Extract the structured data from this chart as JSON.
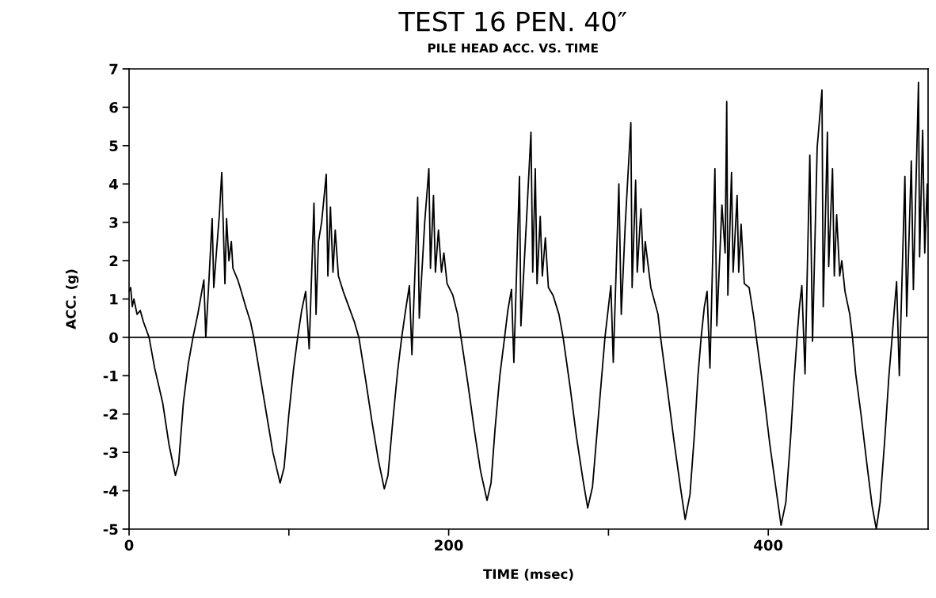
{
  "chart_data": {
    "type": "line",
    "title": "TEST 16 PEN. 40″",
    "subtitle": "PILE HEAD ACC. VS. TIME",
    "xlabel": "TIME (msec)",
    "ylabel": "ACC. (g)",
    "xlim": [
      0,
      500
    ],
    "xticks": [
      0,
      {
        "value": 100,
        "label": null
      },
      200,
      {
        "value": 300,
        "label": null
      },
      400
    ],
    "ylim": [
      -5,
      7
    ],
    "yticks": [
      -5,
      -4,
      -3,
      -2,
      -1,
      0,
      1,
      2,
      3,
      4,
      5,
      6,
      7
    ],
    "grid": false,
    "marker": "none",
    "line_style": "solid",
    "ref_lines": [
      {
        "axis": "y",
        "value": 0,
        "color": "#000000"
      }
    ],
    "series": [
      {
        "color": "#000000",
        "x": [
          0,
          1,
          2,
          3,
          5,
          7,
          9,
          12.5,
          16,
          21,
          25,
          29,
          31,
          34,
          37,
          40,
          43,
          46.8,
          48,
          50,
          52,
          53,
          55,
          56.5,
          58,
          60,
          61,
          62.5,
          64,
          65,
          68,
          69.5,
          73,
          76,
          78,
          82,
          86,
          90,
          94.5,
          97,
          100,
          103,
          105.5,
          108,
          110.5,
          112.7,
          115.7,
          117,
          118.5,
          120.5,
          123.4,
          124.4,
          126,
          127.6,
          129,
          131,
          134,
          137.5,
          141,
          143.8,
          148,
          152,
          156,
          159.7,
          162,
          165,
          168,
          170.6,
          173,
          175.4,
          177,
          180.6,
          181.6,
          185,
          187.6,
          188.6,
          190.5,
          191.7,
          193.6,
          195.5,
          197,
          199,
          202.6,
          205.6,
          207.7,
          212,
          216,
          220,
          224,
          226.5,
          229,
          232,
          235,
          237,
          239.3,
          240.8,
          244.3,
          245.2,
          249,
          251.5,
          252.6,
          254.2,
          255.3,
          257.3,
          258.6,
          260.5,
          262.4,
          265.3,
          269,
          271.6,
          276,
          280,
          284,
          287,
          290,
          293,
          296,
          297.8,
          300,
          301.5,
          303,
          306.5,
          308,
          310.5,
          314,
          314.8,
          317,
          318,
          320.3,
          322,
          323,
          326.5,
          331,
          332.6,
          337,
          341,
          345,
          348,
          351,
          354,
          356,
          358,
          360,
          361.7,
          363.5,
          366.6,
          367.8,
          371,
          373,
          374,
          374.7,
          377,
          378,
          380.5,
          381.5,
          383,
          385,
          388,
          391,
          392.5,
          397,
          401,
          405,
          408,
          411,
          414,
          416,
          418,
          419.5,
          421,
          423,
          426,
          427.7,
          430.6,
          433.6,
          434.4,
          437,
          437.8,
          440.2,
          441.3,
          442.8,
          444.7,
          446,
          448,
          451,
          452.7,
          454.7,
          458,
          462,
          465,
          467.6,
          470,
          473,
          475.5,
          477.5,
          479,
          480.3,
          482,
          485.5,
          486.6,
          489.5,
          490.8,
          494,
          494.7,
          496.6,
          497.9,
          499.5,
          500
        ],
        "values": [
          1.2,
          1.3,
          0.8,
          1.0,
          0.6,
          0.7,
          0.4,
          0,
          -0.8,
          -1.7,
          -2.8,
          -3.6,
          -3.3,
          -1.7,
          -0.7,
          0,
          0.6,
          1.5,
          0,
          1.5,
          3.1,
          1.3,
          2.4,
          3.2,
          4.3,
          1.4,
          3.1,
          2.0,
          2.5,
          1.8,
          1.5,
          1.3,
          0.8,
          0.4,
          0,
          -1.0,
          -2.0,
          -3.0,
          -3.8,
          -3.4,
          -2.0,
          -0.8,
          0,
          0.7,
          1.2,
          -0.3,
          3.5,
          0.6,
          2.5,
          3.0,
          4.25,
          1.6,
          3.4,
          1.7,
          2.8,
          1.6,
          1.2,
          0.8,
          0.4,
          0,
          -1.1,
          -2.2,
          -3.2,
          -3.95,
          -3.6,
          -2.2,
          -0.9,
          0,
          0.7,
          1.35,
          -0.45,
          3.65,
          0.5,
          3.0,
          4.4,
          1.8,
          3.7,
          1.7,
          2.8,
          1.7,
          2.2,
          1.4,
          1.1,
          0.6,
          0,
          -1.2,
          -2.4,
          -3.5,
          -4.25,
          -3.8,
          -2.4,
          -1.0,
          0,
          0.7,
          1.25,
          -0.65,
          4.2,
          0.3,
          3.3,
          5.35,
          1.7,
          4.4,
          1.4,
          3.15,
          1.6,
          2.6,
          1.3,
          1.1,
          0.6,
          0,
          -1.3,
          -2.6,
          -3.7,
          -4.45,
          -3.9,
          -2.4,
          -0.9,
          0,
          0.8,
          1.35,
          -0.65,
          4.0,
          0.6,
          2.95,
          5.6,
          1.3,
          4.1,
          1.7,
          3.35,
          1.7,
          2.5,
          1.3,
          0.6,
          0,
          -1.4,
          -2.7,
          -3.9,
          -4.75,
          -4.1,
          -2.4,
          -1.0,
          0,
          0.8,
          1.2,
          -0.8,
          4.4,
          0.3,
          3.45,
          2.2,
          6.15,
          1.1,
          4.3,
          1.7,
          3.7,
          1.7,
          2.95,
          1.4,
          1.3,
          0.5,
          0,
          -1.4,
          -2.8,
          -4.0,
          -4.9,
          -4.3,
          -2.6,
          -1.2,
          0,
          0.8,
          1.35,
          -0.95,
          4.75,
          -0.1,
          4.95,
          6.45,
          0.8,
          5.35,
          1.85,
          4.4,
          1.6,
          3.2,
          1.6,
          2.0,
          1.2,
          0.6,
          0,
          -0.95,
          -2.0,
          -3.4,
          -4.4,
          -5.0,
          -4.3,
          -2.6,
          -1.0,
          0,
          0.8,
          1.45,
          -1.0,
          4.2,
          0.55,
          4.6,
          1.25,
          6.65,
          2.1,
          5.4,
          2.2,
          4.0,
          2.9
        ]
      }
    ]
  }
}
